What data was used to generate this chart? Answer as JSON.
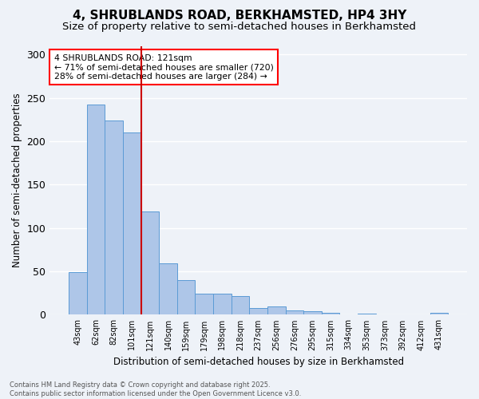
{
  "title1": "4, SHRUBLANDS ROAD, BERKHAMSTED, HP4 3HY",
  "title2": "Size of property relative to semi-detached houses in Berkhamsted",
  "xlabel": "Distribution of semi-detached houses by size in Berkhamsted",
  "ylabel": "Number of semi-detached properties",
  "categories": [
    "43sqm",
    "62sqm",
    "82sqm",
    "101sqm",
    "121sqm",
    "140sqm",
    "159sqm",
    "179sqm",
    "198sqm",
    "218sqm",
    "237sqm",
    "256sqm",
    "276sqm",
    "295sqm",
    "315sqm",
    "334sqm",
    "353sqm",
    "373sqm",
    "392sqm",
    "412sqm",
    "431sqm"
  ],
  "values": [
    49,
    242,
    224,
    210,
    119,
    59,
    40,
    24,
    24,
    22,
    8,
    10,
    5,
    4,
    2,
    0,
    1,
    0,
    0,
    0,
    2
  ],
  "bar_color": "#aec6e8",
  "bar_edge_color": "#5b9bd5",
  "highlight_index": 4,
  "highlight_line_color": "#cc0000",
  "annotation_text": "4 SHRUBLANDS ROAD: 121sqm\n← 71% of semi-detached houses are smaller (720)\n28% of semi-detached houses are larger (284) →",
  "ylim": [
    0,
    310
  ],
  "yticks": [
    0,
    50,
    100,
    150,
    200,
    250,
    300
  ],
  "footnote": "Contains HM Land Registry data © Crown copyright and database right 2025.\nContains public sector information licensed under the Open Government Licence v3.0.",
  "background_color": "#eef2f8",
  "grid_color": "#ffffff",
  "title1_fontsize": 11,
  "title2_fontsize": 9.5
}
